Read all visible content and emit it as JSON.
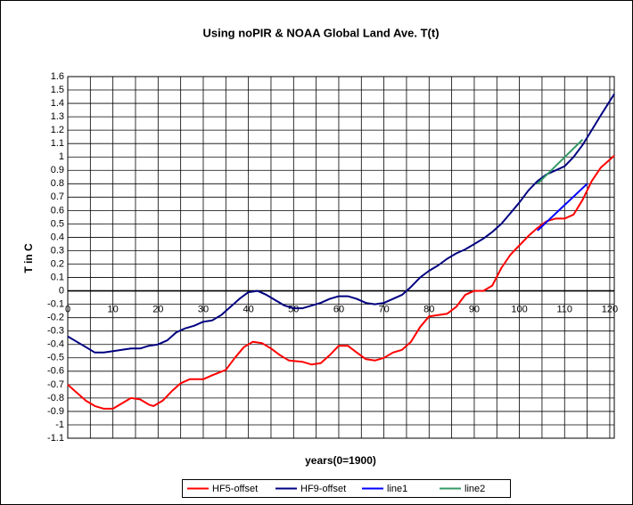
{
  "chart_data": {
    "type": "line",
    "title": "Using noPIR & NOAA Global Land Ave. T(t)",
    "x_label": "years(0=1900)",
    "y_label": "T in C",
    "xlim": [
      0,
      121
    ],
    "ylim": [
      -1.1,
      1.6
    ],
    "xticks": [
      0,
      10,
      20,
      30,
      40,
      50,
      60,
      70,
      80,
      90,
      100,
      110,
      120
    ],
    "xminor_ticks": [
      5,
      15,
      25,
      35,
      45,
      55,
      65,
      75,
      85,
      95,
      105,
      115
    ],
    "yticks": [
      {
        "value": 1.6,
        "label": "1.6"
      },
      {
        "value": 1.5,
        "label": "1.5"
      },
      {
        "value": 1.4,
        "label": "1.4"
      },
      {
        "value": 1.3,
        "label": "1.3"
      },
      {
        "value": 1.2,
        "label": "1.2"
      },
      {
        "value": 1.1,
        "label": "1.1"
      },
      1,
      {
        "value": 0.9,
        "label": "0.9"
      },
      {
        "value": 0.8,
        "label": "0.8"
      },
      {
        "value": 0.7,
        "label": "0.7"
      },
      {
        "value": 0.6,
        "label": "0.6"
      },
      {
        "value": 0.5,
        "label": "0.5"
      },
      {
        "value": 0.4,
        "label": "0.4"
      },
      {
        "value": 0.3,
        "label": "0.3"
      },
      {
        "value": 0.2,
        "label": "0.2"
      },
      {
        "value": 0.1,
        "label": "0.1"
      },
      0,
      {
        "value": -0.1,
        "label": "-0.1"
      },
      {
        "value": -0.2,
        "label": "-0.2"
      },
      {
        "value": -0.3,
        "label": "-0.3"
      },
      {
        "value": -0.4,
        "label": "-0.4"
      },
      {
        "value": -0.5,
        "label": "-0.5"
      },
      {
        "value": -0.6,
        "label": "-0.6"
      },
      {
        "value": -0.7,
        "label": "-0.7"
      },
      {
        "value": -0.8,
        "label": "-0.8"
      },
      {
        "value": -0.9,
        "label": "-0.9"
      },
      -1,
      {
        "value": -1.1,
        "label": "-1.1"
      }
    ],
    "grid": true,
    "legend": "bottom",
    "series": [
      {
        "name": "HF5-offset",
        "color": "#ff0000",
        "x": [
          0,
          2,
          4,
          6,
          8,
          10,
          12,
          14,
          16,
          18,
          19,
          21,
          23,
          25,
          27,
          30,
          32,
          35,
          37,
          39,
          41,
          43,
          45,
          47,
          49,
          52,
          54,
          56,
          58,
          60,
          62,
          64,
          66,
          68,
          70,
          72,
          74,
          76,
          78,
          80,
          82,
          84,
          86,
          88,
          90,
          92,
          94,
          96,
          98,
          100,
          102,
          104,
          106,
          108,
          110,
          112,
          114,
          116,
          118,
          121
        ],
        "values": [
          -0.7,
          -0.76,
          -0.82,
          -0.86,
          -0.88,
          -0.88,
          -0.84,
          -0.8,
          -0.81,
          -0.85,
          -0.86,
          -0.82,
          -0.75,
          -0.69,
          -0.66,
          -0.66,
          -0.63,
          -0.59,
          -0.5,
          -0.42,
          -0.38,
          -0.39,
          -0.43,
          -0.48,
          -0.52,
          -0.53,
          -0.55,
          -0.54,
          -0.48,
          -0.41,
          -0.41,
          -0.46,
          -0.51,
          -0.52,
          -0.5,
          -0.46,
          -0.44,
          -0.38,
          -0.27,
          -0.19,
          -0.18,
          -0.17,
          -0.12,
          -0.03,
          0,
          0,
          0.04,
          0.17,
          0.27,
          0.34,
          0.41,
          0.47,
          0.52,
          0.54,
          0.54,
          0.57,
          0.68,
          0.82,
          0.92,
          1.01
        ]
      },
      {
        "name": "HF9-offset",
        "color": "#000080",
        "x": [
          0,
          2,
          4,
          6,
          8,
          10,
          12,
          14,
          16,
          18,
          20,
          22,
          24,
          26,
          28,
          30,
          32,
          34,
          36,
          38,
          40,
          42,
          44,
          46,
          48,
          50,
          52,
          54,
          56,
          58,
          60,
          62,
          64,
          66,
          68,
          70,
          72,
          74,
          76,
          78,
          80,
          82,
          84,
          86,
          88,
          90,
          92,
          94,
          96,
          98,
          100,
          102,
          104,
          106,
          108,
          110,
          112,
          114,
          116,
          118,
          121
        ],
        "values": [
          -0.34,
          -0.38,
          -0.42,
          -0.46,
          -0.46,
          -0.45,
          -0.44,
          -0.43,
          -0.43,
          -0.41,
          -0.4,
          -0.37,
          -0.31,
          -0.28,
          -0.26,
          -0.23,
          -0.22,
          -0.18,
          -0.12,
          -0.06,
          -0.01,
          0,
          -0.03,
          -0.07,
          -0.11,
          -0.13,
          -0.13,
          -0.11,
          -0.09,
          -0.06,
          -0.04,
          -0.04,
          -0.06,
          -0.09,
          -0.1,
          -0.09,
          -0.06,
          -0.03,
          0.03,
          0.1,
          0.15,
          0.19,
          0.24,
          0.28,
          0.31,
          0.35,
          0.39,
          0.44,
          0.5,
          0.58,
          0.66,
          0.75,
          0.82,
          0.87,
          0.9,
          0.93,
          1.0,
          1.09,
          1.2,
          1.31,
          1.47
        ]
      },
      {
        "name": "line1",
        "color": "#0000ff",
        "x": [
          104,
          115
        ],
        "values": [
          0.45,
          0.8
        ]
      },
      {
        "name": "line2",
        "color": "#339966",
        "x": [
          104,
          114
        ],
        "values": [
          0.8,
          1.13
        ]
      }
    ]
  }
}
